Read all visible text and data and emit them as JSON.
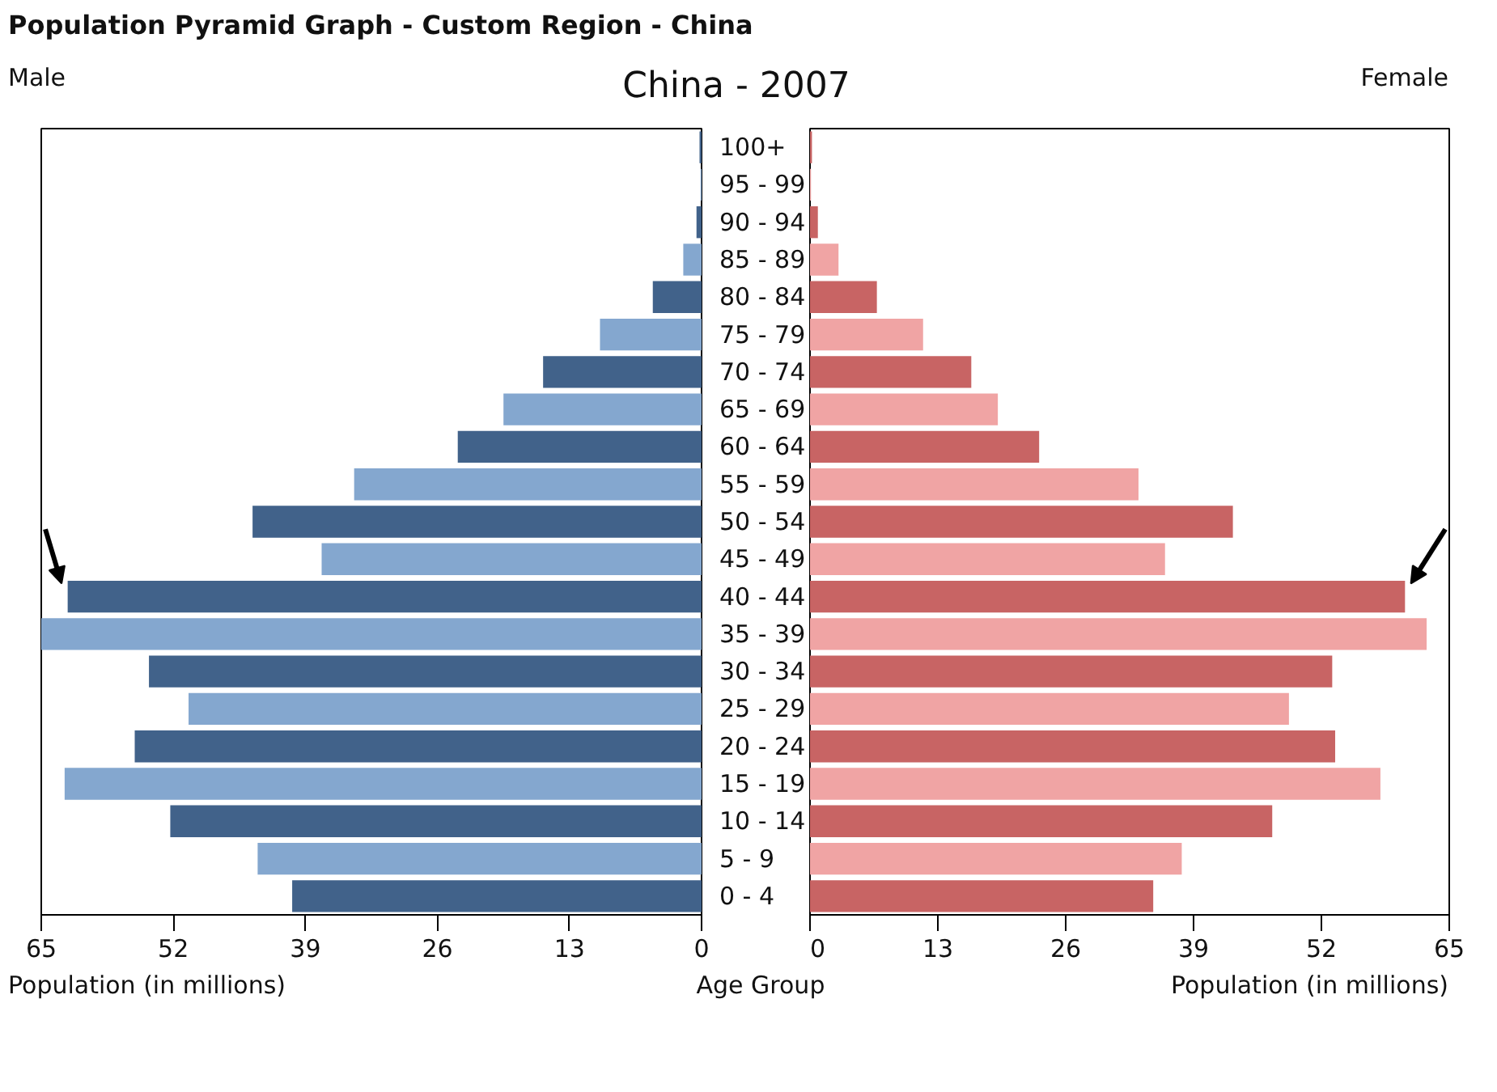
{
  "chart_data": [
    {
      "type": "bar",
      "orientation": "horizontal",
      "title": "Population Pyramid Graph - Custom Region - China",
      "subtitle": "China - 2007",
      "annotations": [
        "Male"
      ],
      "xlabel": "Population (in millions)",
      "ylabel": "Age Group",
      "categories": [
        "100+",
        "95 - 99",
        "90 - 94",
        "85 - 89",
        "80 - 84",
        "75 - 79",
        "70 - 74",
        "65 - 69",
        "60 - 64",
        "55 - 59",
        "50 - 54",
        "45 - 49",
        "40 - 44",
        "35 - 39",
        "30 - 34",
        "25 - 29",
        "20 - 24",
        "15 - 19",
        "10 - 14",
        "5 - 9",
        "0 - 4"
      ],
      "values": [
        0.2,
        0.1,
        0.5,
        1.8,
        4.8,
        10,
        15.6,
        19.5,
        24,
        34.2,
        44.2,
        37.4,
        62.4,
        65,
        54.4,
        50.5,
        55.8,
        62.7,
        52.3,
        43.7,
        40.3
      ],
      "colors": [
        "#41628a",
        "#84a7cf",
        "#41628a",
        "#84a7cf",
        "#41628a",
        "#84a7cf",
        "#41628a",
        "#84a7cf",
        "#41628a",
        "#84a7cf",
        "#41628a",
        "#84a7cf",
        "#41628a",
        "#84a7cf",
        "#41628a",
        "#84a7cf",
        "#41628a",
        "#84a7cf",
        "#41628a",
        "#84a7cf",
        "#41628a"
      ],
      "xlim": [
        65,
        0
      ],
      "xticks": [
        65,
        52,
        39,
        26,
        13,
        0
      ],
      "grid": false
    },
    {
      "type": "bar",
      "orientation": "horizontal",
      "annotations": [
        "Female"
      ],
      "xlabel": "Population (in millions)",
      "values": [
        0.2,
        0.1,
        0.8,
        2.9,
        6.8,
        11.5,
        16.4,
        19.1,
        23.3,
        33.4,
        43,
        36.1,
        60.5,
        62.7,
        53.1,
        48.7,
        53.4,
        58,
        47,
        37.8,
        34.9
      ],
      "colors": [
        "#c86464",
        "#f0a4a4",
        "#c86464",
        "#f0a4a4",
        "#c86464",
        "#f0a4a4",
        "#c86464",
        "#f0a4a4",
        "#c86464",
        "#f0a4a4",
        "#c86464",
        "#f0a4a4",
        "#c86464",
        "#f0a4a4",
        "#c86464",
        "#f0a4a4",
        "#c86464",
        "#f0a4a4",
        "#c86464",
        "#f0a4a4",
        "#c86464"
      ],
      "xlim": [
        0,
        65
      ],
      "xticks": [
        0,
        13,
        26,
        39,
        52,
        65
      ],
      "tick_labels": "x",
      "grid": false
    }
  ]
}
